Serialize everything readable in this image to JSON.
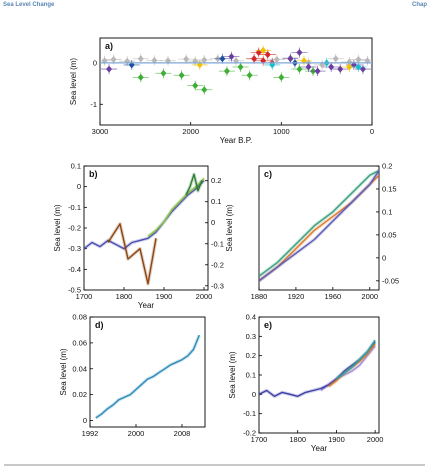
{
  "header": {
    "section": "Sea Level Change",
    "chapter_stub": "Chap"
  },
  "chart_data": [
    {
      "panel": "a)",
      "type": "scatter",
      "xlabel": "Year B.P.",
      "ylabel": "Sea level (m)",
      "xlim": [
        3000,
        0
      ],
      "ylim": [
        -1.5,
        0.6
      ],
      "x_reversed": true,
      "xticks": [
        3000,
        2000,
        1000,
        0
      ],
      "yticks": [
        0,
        -1
      ],
      "series": [
        {
          "color": "#b8b8b8",
          "x": [
            2950,
            2850,
            2700,
            2550,
            2400,
            2250,
            2050,
            1950,
            1850,
            1700,
            1500,
            1300,
            1050,
            900,
            700,
            550,
            400,
            250,
            150,
            50
          ],
          "y": [
            0.05,
            0.08,
            0.04,
            0.1,
            0.06,
            0.05,
            0.09,
            0.04,
            0.07,
            0.1,
            0.05,
            0.1,
            0.08,
            0.12,
            0.0,
            -0.05,
            0.1,
            0.02,
            0.08,
            0.05
          ]
        },
        {
          "color": "#3fae36",
          "x": [
            2550,
            2300,
            2100,
            1950,
            1850,
            1600,
            1450,
            1350,
            1000,
            800,
            650
          ],
          "y": [
            -0.35,
            -0.25,
            -0.3,
            -0.55,
            -0.65,
            -0.2,
            -0.1,
            -0.3,
            -0.35,
            -0.15,
            -0.2
          ]
        },
        {
          "color": "#d62728",
          "x": [
            1300,
            1250,
            1200,
            1150,
            1100
          ],
          "y": [
            0.1,
            0.25,
            0.05,
            0.2,
            0.0
          ]
        },
        {
          "color": "#6a3fa0",
          "x": [
            2900,
            1550,
            900,
            800,
            700,
            600,
            450,
            350,
            200,
            100
          ],
          "y": [
            -0.15,
            0.15,
            0.1,
            0.25,
            -0.1,
            -0.2,
            -0.1,
            -0.15,
            -0.05,
            -0.15
          ]
        },
        {
          "color": "#f2c100",
          "x": [
            1900,
            1200,
            750,
            250
          ],
          "y": [
            -0.05,
            0.3,
            0.05,
            -0.1
          ]
        },
        {
          "color": "#1f4fa0",
          "x": [
            2650,
            1650,
            850
          ],
          "y": [
            -0.05,
            0.1,
            0.0
          ]
        },
        {
          "color": "#17becf",
          "x": [
            1100,
            500,
            150
          ],
          "y": [
            -0.05,
            0.0,
            -0.1
          ]
        }
      ]
    },
    {
      "panel": "b)",
      "type": "line",
      "xlabel": "Year",
      "ylabel": "Sea level (m)",
      "ylabel_right": "Sea level (m)",
      "xlim": [
        1700,
        2010
      ],
      "ylim": [
        -0.5,
        0.1
      ],
      "ylim_right": [
        -0.32,
        0.27
      ],
      "xticks": [
        1700,
        1800,
        1900,
        2000
      ],
      "yticks": [
        0.1,
        0,
        -0.1,
        -0.2,
        -0.3,
        -0.4,
        -0.5
      ],
      "yticks_right": [
        0.2,
        0.1,
        0,
        -0.1,
        -0.2,
        -0.3
      ],
      "series": [
        {
          "color": "#4a4fb0",
          "x": [
            1700,
            1720,
            1740,
            1760,
            1780,
            1800,
            1820,
            1840,
            1860,
            1880,
            1900,
            1920,
            1940,
            1960,
            1980,
            2000
          ],
          "y": [
            -0.3,
            -0.27,
            -0.29,
            -0.26,
            -0.28,
            -0.3,
            -0.27,
            -0.26,
            -0.25,
            -0.22,
            -0.17,
            -0.12,
            -0.08,
            -0.04,
            -0.01,
            0.03
          ]
        },
        {
          "color": "#8bc34a",
          "x": [
            1860,
            1880,
            1900,
            1920,
            1940,
            1960,
            1980,
            2000
          ],
          "y": [
            -0.24,
            -0.21,
            -0.17,
            -0.11,
            -0.07,
            -0.03,
            0.0,
            0.04
          ]
        },
        {
          "color": "#2e7d32",
          "x": [
            1955,
            1965,
            1975,
            1985,
            1995
          ],
          "y": [
            -0.04,
            0.0,
            0.06,
            -0.02,
            0.03
          ]
        },
        {
          "color": "#8b4513",
          "x": [
            1760,
            1790,
            1810,
            1840,
            1860,
            1880
          ],
          "y": [
            -0.27,
            -0.18,
            -0.35,
            -0.3,
            -0.47,
            -0.25
          ]
        }
      ]
    },
    {
      "panel": "c)",
      "type": "line",
      "xlabel": "",
      "ylabel": "",
      "xlim": [
        1880,
        2010
      ],
      "ylim": [
        -0.07,
        0.2
      ],
      "xticks": [
        1880,
        1920,
        1960,
        2000
      ],
      "yticks_right": [
        0.2,
        0.15,
        0.1,
        0.05,
        0,
        -0.05
      ],
      "series": [
        {
          "color": "#e07a2c",
          "x": [
            1880,
            1900,
            1920,
            1940,
            1960,
            1980,
            2000,
            2010
          ],
          "y": [
            -0.05,
            -0.02,
            0.02,
            0.06,
            0.09,
            0.12,
            0.16,
            0.18
          ]
        },
        {
          "color": "#3aa17e",
          "x": [
            1880,
            1900,
            1920,
            1940,
            1960,
            1980,
            2000,
            2010
          ],
          "y": [
            -0.04,
            -0.01,
            0.03,
            0.07,
            0.1,
            0.14,
            0.18,
            0.19
          ]
        },
        {
          "color": "#5b5bb5",
          "x": [
            1880,
            1900,
            1920,
            1940,
            1960,
            1980,
            2000,
            2010
          ],
          "y": [
            -0.05,
            -0.02,
            0.01,
            0.04,
            0.08,
            0.12,
            0.16,
            0.19
          ]
        }
      ]
    },
    {
      "panel": "d)",
      "type": "line",
      "xlabel": "",
      "ylabel": "Sea level (m)",
      "xlim": [
        1992,
        2012
      ],
      "ylim": [
        -0.005,
        0.08
      ],
      "xticks": [
        1992,
        2000,
        2008
      ],
      "yticks": [
        0.08,
        0.06,
        0.04,
        0.02,
        0
      ],
      "series": [
        {
          "color": "#2e8bb8",
          "x": [
            1993,
            1994,
            1995,
            1996,
            1997,
            1998,
            1999,
            2000,
            2001,
            2002,
            2003,
            2004,
            2005,
            2006,
            2007,
            2008,
            2009,
            2010,
            2011
          ],
          "y": [
            0.002,
            0.005,
            0.009,
            0.012,
            0.016,
            0.018,
            0.02,
            0.024,
            0.028,
            0.032,
            0.034,
            0.037,
            0.04,
            0.043,
            0.045,
            0.047,
            0.05,
            0.055,
            0.066
          ]
        }
      ]
    },
    {
      "panel": "e)",
      "type": "line",
      "xlabel": "Year",
      "ylabel": "Sea level (m)",
      "xlim": [
        1700,
        2010
      ],
      "ylim": [
        -0.2,
        0.4
      ],
      "xticks": [
        1700,
        1800,
        1900,
        2000
      ],
      "yticks": [
        0.4,
        0.3,
        0.2,
        0.1,
        0,
        -0.1,
        -0.2
      ],
      "series": [
        {
          "color": "#a98bd6",
          "x": [
            1860,
            1880,
            1900,
            1920,
            1940,
            1960,
            1980,
            2000
          ],
          "y": [
            0.02,
            0.05,
            0.08,
            0.1,
            0.12,
            0.15,
            0.2,
            0.25
          ]
        },
        {
          "color": "#3d3fa8",
          "x": [
            1700,
            1720,
            1740,
            1760,
            1780,
            1800,
            1820,
            1840,
            1860,
            1880,
            1900,
            1920,
            1940,
            1960,
            1980,
            2000
          ],
          "y": [
            0.0,
            0.02,
            -0.01,
            0.01,
            0.0,
            -0.01,
            0.01,
            0.02,
            0.03,
            0.05,
            0.08,
            0.12,
            0.15,
            0.18,
            0.22,
            0.27
          ]
        },
        {
          "color": "#e07a2c",
          "x": [
            1880,
            1900,
            1920,
            1940,
            1960,
            1980,
            2000
          ],
          "y": [
            0.04,
            0.07,
            0.11,
            0.14,
            0.17,
            0.21,
            0.26
          ]
        },
        {
          "color": "#2aa0a0",
          "x": [
            1900,
            1920,
            1940,
            1960,
            1980,
            2000
          ],
          "y": [
            0.08,
            0.11,
            0.14,
            0.18,
            0.22,
            0.28
          ]
        }
      ]
    }
  ]
}
